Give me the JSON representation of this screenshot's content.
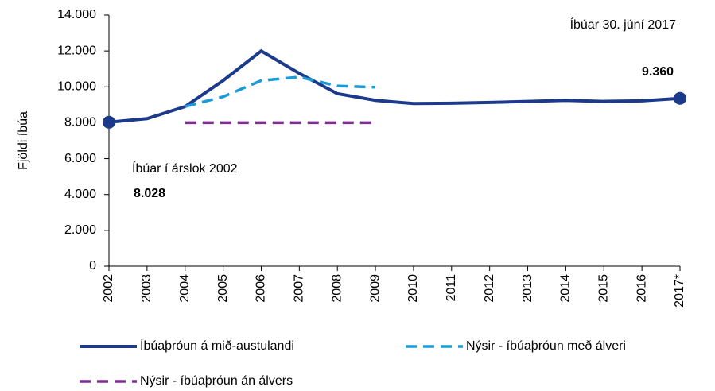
{
  "chart_data": {
    "type": "line",
    "y_label": "Fjöldi íbúa",
    "categories": [
      "2002",
      "2003",
      "2004",
      "2005",
      "2006",
      "2007",
      "2008",
      "2009",
      "2010",
      "2011",
      "2012",
      "2013",
      "2014",
      "2015",
      "2016",
      "2017*"
    ],
    "series": [
      {
        "name": "Íbúaþróun á mið-austulandi",
        "color": "#1b3a8c",
        "dash": "solid",
        "values": [
          8028,
          8230,
          8900,
          10350,
          12000,
          10750,
          9620,
          9250,
          9070,
          9090,
          9130,
          9190,
          9250,
          9190,
          9220,
          9360
        ],
        "value_labels": [
          "8.028",
          null,
          null,
          null,
          null,
          null,
          null,
          null,
          null,
          null,
          null,
          null,
          null,
          null,
          null,
          "9.360"
        ]
      },
      {
        "name": "Nýsir - íbúaþróun með álveri",
        "color": "#1a9ad6",
        "dash": "dashed",
        "values": [
          null,
          null,
          8900,
          9450,
          10350,
          10550,
          10050,
          9980,
          null,
          null,
          null,
          null,
          null,
          null,
          null,
          null
        ]
      },
      {
        "name": "Nýsir - íbúaþróun án álvers",
        "color": "#7b2f8e",
        "dash": "dashed",
        "values": [
          null,
          null,
          8000,
          8000,
          8000,
          8000,
          8000,
          8000,
          null,
          null,
          null,
          null,
          null,
          null,
          null,
          null
        ]
      }
    ],
    "annotations": [
      "Íbúar 30. júní 2017",
      "Íbúar í árslok 2002"
    ],
    "ylim": [
      0,
      14000
    ],
    "yticks": [
      0,
      {
        "value": 2000,
        "label": "2.000"
      },
      {
        "value": 4000,
        "label": "4.000"
      },
      {
        "value": 6000,
        "label": "6.000"
      },
      {
        "value": 8000,
        "label": "8.000"
      },
      {
        "value": 10000,
        "label": "10.000"
      },
      {
        "value": 12000,
        "label": "12.000"
      },
      {
        "value": 14000,
        "label": "14.000"
      }
    ],
    "grid": false
  }
}
